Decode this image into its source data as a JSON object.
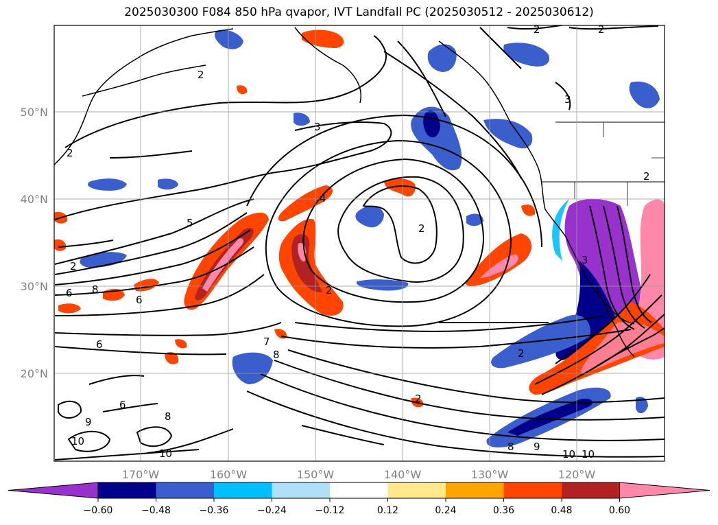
{
  "title": "2025030300 F084 850 hPa qvapor, IVT Landfall PC (2025030512 - 2025030612)",
  "y_axis_labels": [
    "50°N",
    "40°N",
    "30°N",
    "20°N"
  ],
  "x_axis_labels": [
    "170°W",
    "160°W",
    "150°W",
    "140°W",
    "130°W",
    "120°W"
  ],
  "colorbar": {
    "tick_labels": [
      "-0.60",
      "-0.48",
      "-0.36",
      "-0.24",
      "-0.12",
      "0.12",
      "0.24",
      "0.36",
      "0.48",
      "0.60"
    ],
    "colors": [
      "#9932cc",
      "#00008b",
      "#3a5fcd",
      "#00bfff",
      "#b0e0f8",
      "#ffffff",
      "#ffe98c",
      "#ffa500",
      "#ff4500",
      "#b22222",
      "#ff88aa"
    ]
  },
  "contour_labels": [
    "2",
    "3",
    "4",
    "5",
    "6",
    "7",
    "8",
    "9",
    "10"
  ],
  "colors": {
    "purple": "#9932cc",
    "navy": "#00008b",
    "blue": "#3a5fcd",
    "lightblue": "#00bfff",
    "yellow": "#ffe98c",
    "orange": "#ffa500",
    "red": "#ff4500",
    "darkred": "#b22222",
    "pink": "#ff88aa"
  }
}
